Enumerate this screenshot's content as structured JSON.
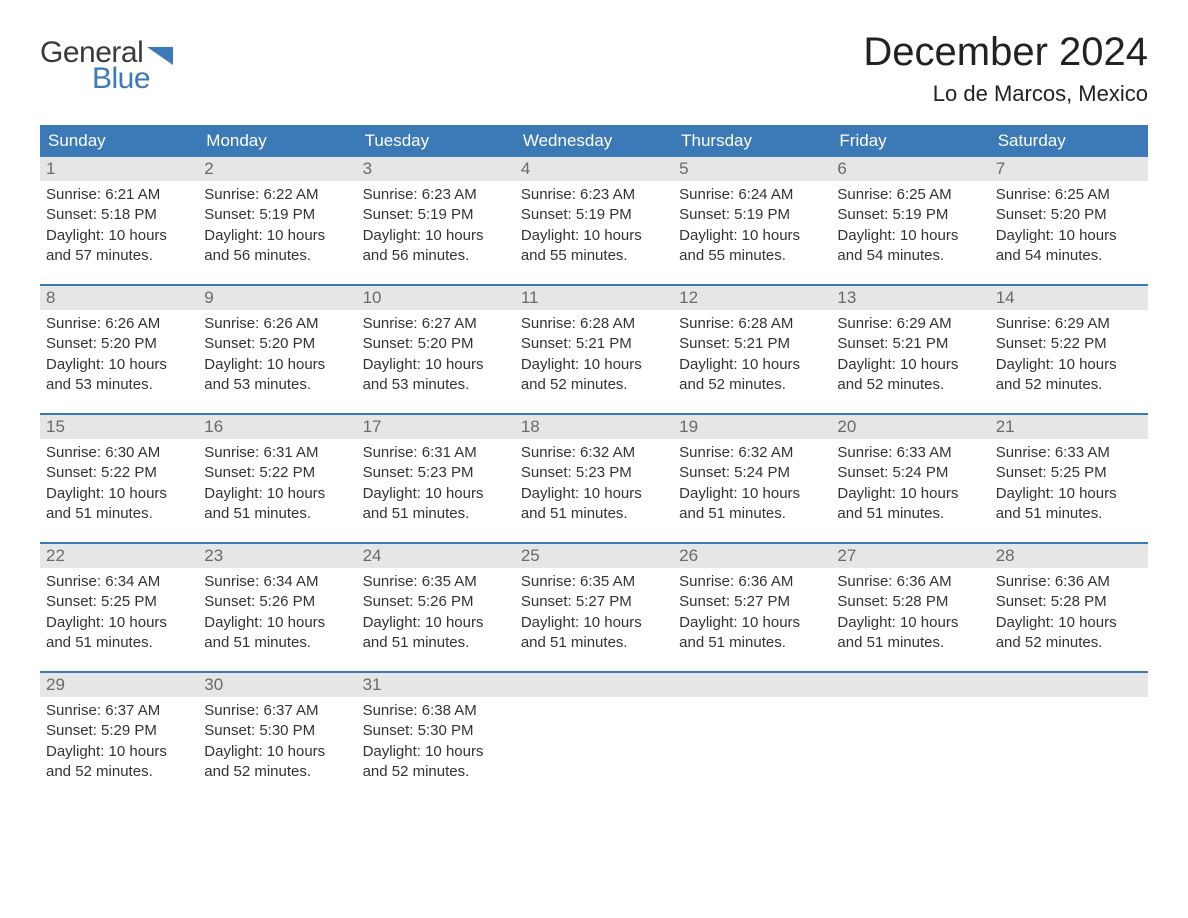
{
  "logo": {
    "text_general": "General",
    "text_blue": "Blue",
    "shape_color": "#3b79b7"
  },
  "title": "December 2024",
  "location": "Lo de Marcos, Mexico",
  "colors": {
    "header_bg": "#3b79b7",
    "header_text": "#ffffff",
    "date_bg": "#e6e6e6",
    "date_text": "#6a6a6a",
    "body_text": "#333333",
    "week_border": "#3b79b7",
    "background": "#ffffff"
  },
  "day_names": [
    "Sunday",
    "Monday",
    "Tuesday",
    "Wednesday",
    "Thursday",
    "Friday",
    "Saturday"
  ],
  "labels": {
    "sunrise": "Sunrise: ",
    "sunset": "Sunset: ",
    "daylight_prefix": "Daylight: ",
    "daylight_hours_unit": " hours",
    "daylight_and": "and ",
    "daylight_minutes_unit": " minutes."
  },
  "weeks": [
    [
      {
        "date": "1",
        "sunrise": "6:21 AM",
        "sunset": "5:18 PM",
        "dl_h": "10",
        "dl_m": "57"
      },
      {
        "date": "2",
        "sunrise": "6:22 AM",
        "sunset": "5:19 PM",
        "dl_h": "10",
        "dl_m": "56"
      },
      {
        "date": "3",
        "sunrise": "6:23 AM",
        "sunset": "5:19 PM",
        "dl_h": "10",
        "dl_m": "56"
      },
      {
        "date": "4",
        "sunrise": "6:23 AM",
        "sunset": "5:19 PM",
        "dl_h": "10",
        "dl_m": "55"
      },
      {
        "date": "5",
        "sunrise": "6:24 AM",
        "sunset": "5:19 PM",
        "dl_h": "10",
        "dl_m": "55"
      },
      {
        "date": "6",
        "sunrise": "6:25 AM",
        "sunset": "5:19 PM",
        "dl_h": "10",
        "dl_m": "54"
      },
      {
        "date": "7",
        "sunrise": "6:25 AM",
        "sunset": "5:20 PM",
        "dl_h": "10",
        "dl_m": "54"
      }
    ],
    [
      {
        "date": "8",
        "sunrise": "6:26 AM",
        "sunset": "5:20 PM",
        "dl_h": "10",
        "dl_m": "53"
      },
      {
        "date": "9",
        "sunrise": "6:26 AM",
        "sunset": "5:20 PM",
        "dl_h": "10",
        "dl_m": "53"
      },
      {
        "date": "10",
        "sunrise": "6:27 AM",
        "sunset": "5:20 PM",
        "dl_h": "10",
        "dl_m": "53"
      },
      {
        "date": "11",
        "sunrise": "6:28 AM",
        "sunset": "5:21 PM",
        "dl_h": "10",
        "dl_m": "52"
      },
      {
        "date": "12",
        "sunrise": "6:28 AM",
        "sunset": "5:21 PM",
        "dl_h": "10",
        "dl_m": "52"
      },
      {
        "date": "13",
        "sunrise": "6:29 AM",
        "sunset": "5:21 PM",
        "dl_h": "10",
        "dl_m": "52"
      },
      {
        "date": "14",
        "sunrise": "6:29 AM",
        "sunset": "5:22 PM",
        "dl_h": "10",
        "dl_m": "52"
      }
    ],
    [
      {
        "date": "15",
        "sunrise": "6:30 AM",
        "sunset": "5:22 PM",
        "dl_h": "10",
        "dl_m": "51"
      },
      {
        "date": "16",
        "sunrise": "6:31 AM",
        "sunset": "5:22 PM",
        "dl_h": "10",
        "dl_m": "51"
      },
      {
        "date": "17",
        "sunrise": "6:31 AM",
        "sunset": "5:23 PM",
        "dl_h": "10",
        "dl_m": "51"
      },
      {
        "date": "18",
        "sunrise": "6:32 AM",
        "sunset": "5:23 PM",
        "dl_h": "10",
        "dl_m": "51"
      },
      {
        "date": "19",
        "sunrise": "6:32 AM",
        "sunset": "5:24 PM",
        "dl_h": "10",
        "dl_m": "51"
      },
      {
        "date": "20",
        "sunrise": "6:33 AM",
        "sunset": "5:24 PM",
        "dl_h": "10",
        "dl_m": "51"
      },
      {
        "date": "21",
        "sunrise": "6:33 AM",
        "sunset": "5:25 PM",
        "dl_h": "10",
        "dl_m": "51"
      }
    ],
    [
      {
        "date": "22",
        "sunrise": "6:34 AM",
        "sunset": "5:25 PM",
        "dl_h": "10",
        "dl_m": "51"
      },
      {
        "date": "23",
        "sunrise": "6:34 AM",
        "sunset": "5:26 PM",
        "dl_h": "10",
        "dl_m": "51"
      },
      {
        "date": "24",
        "sunrise": "6:35 AM",
        "sunset": "5:26 PM",
        "dl_h": "10",
        "dl_m": "51"
      },
      {
        "date": "25",
        "sunrise": "6:35 AM",
        "sunset": "5:27 PM",
        "dl_h": "10",
        "dl_m": "51"
      },
      {
        "date": "26",
        "sunrise": "6:36 AM",
        "sunset": "5:27 PM",
        "dl_h": "10",
        "dl_m": "51"
      },
      {
        "date": "27",
        "sunrise": "6:36 AM",
        "sunset": "5:28 PM",
        "dl_h": "10",
        "dl_m": "51"
      },
      {
        "date": "28",
        "sunrise": "6:36 AM",
        "sunset": "5:28 PM",
        "dl_h": "10",
        "dl_m": "52"
      }
    ],
    [
      {
        "date": "29",
        "sunrise": "6:37 AM",
        "sunset": "5:29 PM",
        "dl_h": "10",
        "dl_m": "52"
      },
      {
        "date": "30",
        "sunrise": "6:37 AM",
        "sunset": "5:30 PM",
        "dl_h": "10",
        "dl_m": "52"
      },
      {
        "date": "31",
        "sunrise": "6:38 AM",
        "sunset": "5:30 PM",
        "dl_h": "10",
        "dl_m": "52"
      },
      null,
      null,
      null,
      null
    ]
  ]
}
